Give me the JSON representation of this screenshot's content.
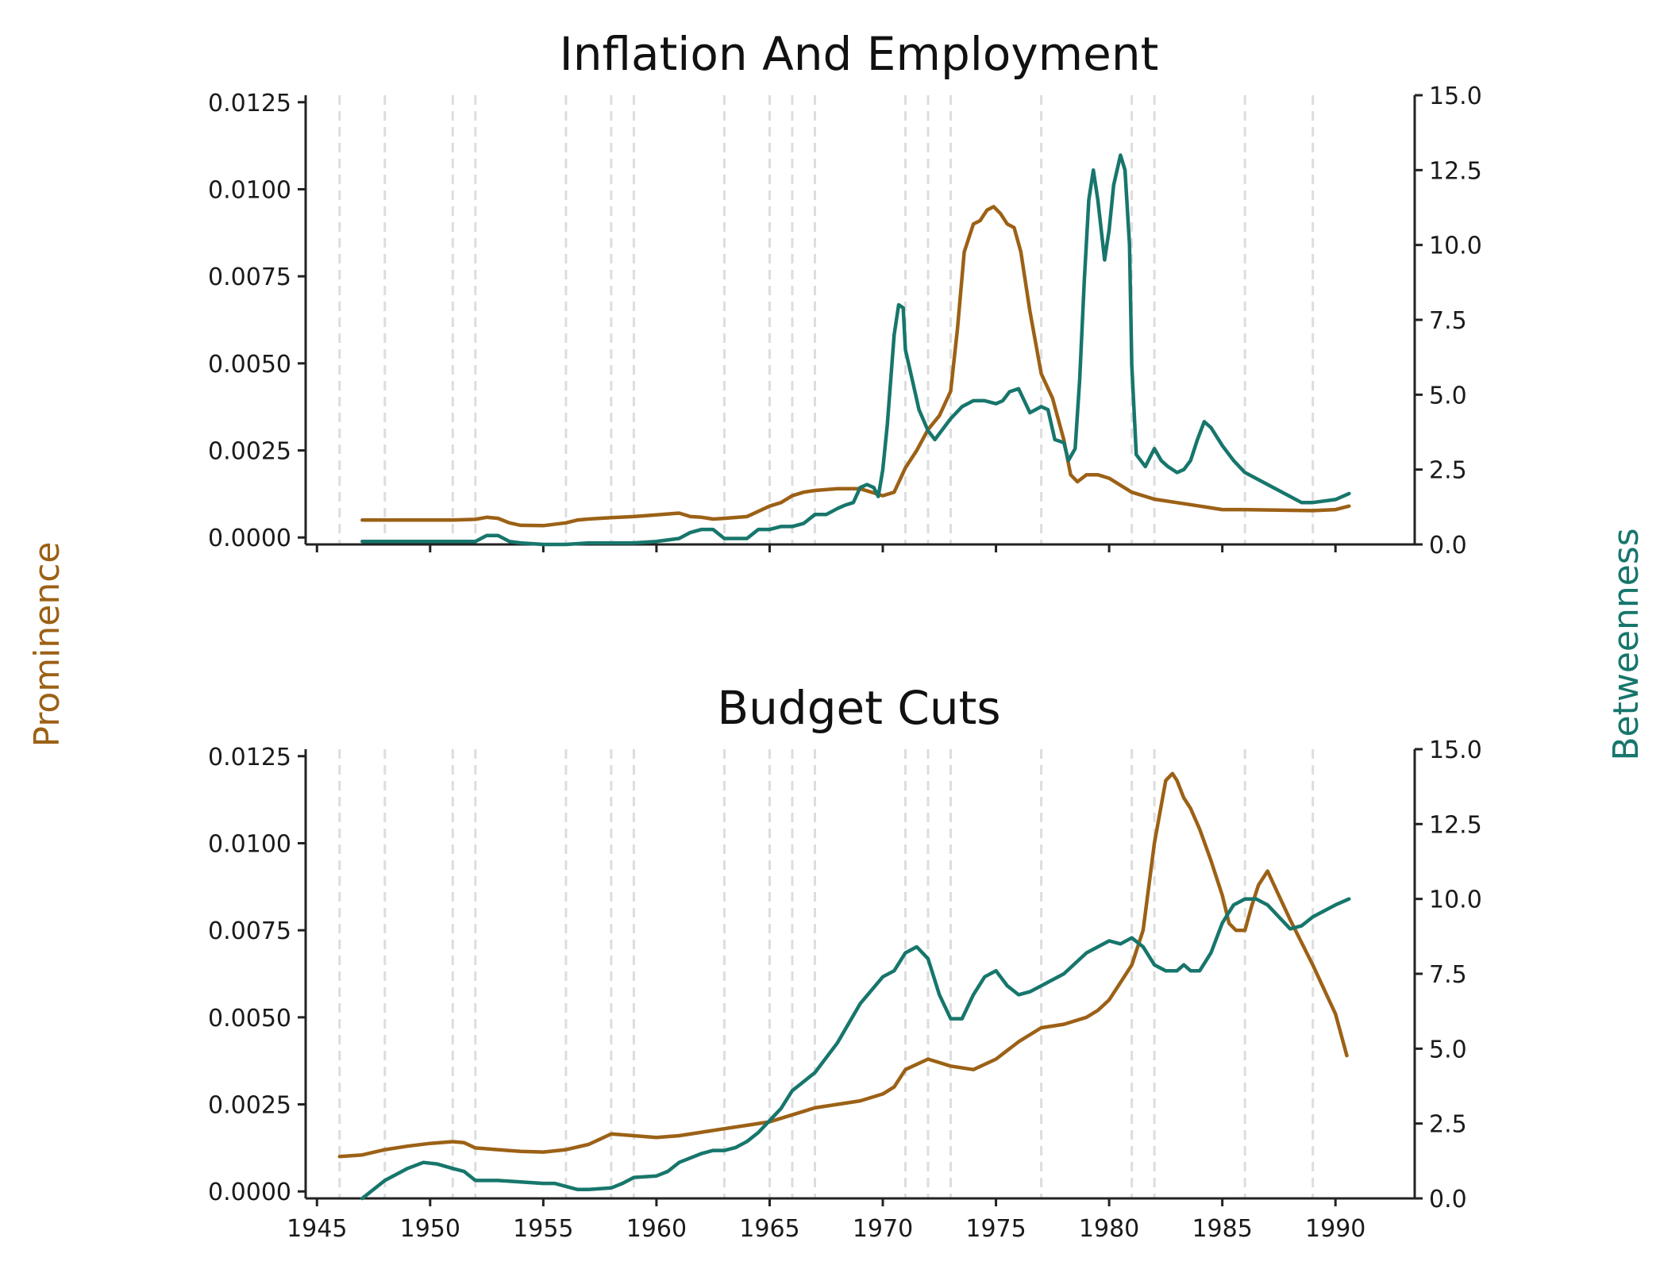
{
  "colors": {
    "prominence": "#9c6116",
    "betweenness": "#17766c",
    "axis": "#222222",
    "vline": "#dddddd"
  },
  "ylabel_left": "Prominence",
  "ylabel_right": "Betweenness",
  "chart_data": [
    {
      "type": "line",
      "title": "Inflation And Employment",
      "xlim": [
        1944.5,
        1993.5
      ],
      "x_ticks": [
        1945,
        1950,
        1955,
        1960,
        1965,
        1970,
        1975,
        1980,
        1985,
        1990
      ],
      "x_tick_labels_shown": false,
      "ylim_left": [
        -0.0002,
        0.0127
      ],
      "yticks_left": [
        "0.0000",
        "0.0025",
        "0.0050",
        "0.0075",
        "0.0100",
        "0.0125"
      ],
      "ylim_right": [
        0,
        15
      ],
      "yticks_right": [
        "0.0",
        "2.5",
        "5.0",
        "7.5",
        "10.0",
        "12.5",
        "15.0"
      ],
      "event_lines": [
        1946,
        1948,
        1951,
        1952,
        1956,
        1958,
        1959,
        1963,
        1965,
        1966,
        1967,
        1971,
        1972,
        1973,
        1977,
        1981,
        1982,
        1986,
        1989
      ],
      "grid": false,
      "legend": "none",
      "series": [
        {
          "role": "prominence",
          "axis": "left",
          "x": [
            1947,
            1949,
            1951,
            1952,
            1952.5,
            1953,
            1953.5,
            1954,
            1955,
            1956,
            1956.5,
            1957,
            1958,
            1959,
            1960,
            1961,
            1961.5,
            1962,
            1962.5,
            1963,
            1964,
            1965,
            1965.5,
            1966,
            1966.5,
            1967,
            1968,
            1969,
            1970,
            1970.5,
            1971,
            1971.5,
            1972,
            1972.5,
            1973,
            1973.3,
            1973.6,
            1974,
            1974.3,
            1974.6,
            1974.9,
            1975.2,
            1975.5,
            1975.8,
            1976.1,
            1976.5,
            1977,
            1977.5,
            1978,
            1978.3,
            1978.6,
            1979,
            1979.5,
            1980,
            1980.5,
            1981,
            1982,
            1983,
            1984,
            1985,
            1986,
            1988,
            1989,
            1990,
            1990.6
          ],
          "y": [
            0.0005,
            0.0005,
            0.0005,
            0.00052,
            0.00058,
            0.00055,
            0.00042,
            0.00035,
            0.00034,
            0.00042,
            0.0005,
            0.00053,
            0.00057,
            0.0006,
            0.00065,
            0.0007,
            0.0006,
            0.00058,
            0.00053,
            0.00055,
            0.0006,
            0.0009,
            0.001,
            0.0012,
            0.0013,
            0.00135,
            0.0014,
            0.0014,
            0.0012,
            0.0013,
            0.002,
            0.0025,
            0.0031,
            0.0035,
            0.0042,
            0.006,
            0.0082,
            0.009,
            0.0091,
            0.0094,
            0.0095,
            0.0093,
            0.009,
            0.0089,
            0.0082,
            0.0065,
            0.0047,
            0.004,
            0.0028,
            0.0018,
            0.0016,
            0.0018,
            0.0018,
            0.0017,
            0.0015,
            0.0013,
            0.0011,
            0.001,
            0.0009,
            0.0008,
            0.0008,
            0.00078,
            0.00077,
            0.0008,
            0.0009
          ]
        },
        {
          "role": "betweenness",
          "axis": "right",
          "x": [
            1947,
            1950,
            1952,
            1952.5,
            1953,
            1953.5,
            1954,
            1955,
            1956,
            1957,
            1958,
            1959,
            1960,
            1961,
            1961.5,
            1962,
            1962.5,
            1963,
            1963.5,
            1964,
            1964.5,
            1965,
            1965.5,
            1966,
            1966.5,
            1967,
            1967.5,
            1968,
            1968.3,
            1968.7,
            1969,
            1969.3,
            1969.6,
            1969.8,
            1970,
            1970.2,
            1970.5,
            1970.7,
            1970.9,
            1971,
            1971.3,
            1971.6,
            1972,
            1972.3,
            1972.6,
            1973,
            1973.5,
            1974,
            1974.5,
            1975,
            1975.3,
            1975.6,
            1976,
            1976.5,
            1977,
            1977.3,
            1977.6,
            1978,
            1978.2,
            1978.5,
            1978.7,
            1978.9,
            1979.1,
            1979.3,
            1979.5,
            1979.8,
            1980,
            1980.2,
            1980.5,
            1980.7,
            1980.9,
            1981,
            1981.2,
            1981.6,
            1982,
            1982.3,
            1982.6,
            1983,
            1983.3,
            1983.6,
            1983.9,
            1984.2,
            1984.5,
            1985,
            1985.5,
            1986,
            1987,
            1988,
            1988.5,
            1989,
            1990,
            1990.6
          ],
          "y": [
            0.1,
            0.1,
            0.1,
            0.3,
            0.3,
            0.1,
            0.05,
            0.0,
            0.0,
            0.05,
            0.05,
            0.05,
            0.1,
            0.2,
            0.4,
            0.5,
            0.5,
            0.2,
            0.2,
            0.2,
            0.5,
            0.5,
            0.6,
            0.6,
            0.7,
            1.0,
            1.0,
            1.2,
            1.3,
            1.4,
            1.9,
            2.0,
            1.9,
            1.6,
            2.5,
            4.0,
            7.0,
            8.0,
            7.9,
            6.5,
            5.5,
            4.5,
            3.8,
            3.5,
            3.8,
            4.2,
            4.6,
            4.8,
            4.8,
            4.7,
            4.8,
            5.1,
            5.2,
            4.4,
            4.6,
            4.5,
            3.5,
            3.4,
            2.8,
            3.2,
            5.5,
            8.8,
            11.5,
            12.5,
            11.5,
            9.5,
            10.5,
            12.0,
            13.0,
            12.5,
            10.0,
            6.0,
            3.0,
            2.6,
            3.2,
            2.8,
            2.6,
            2.4,
            2.5,
            2.8,
            3.5,
            4.1,
            3.9,
            3.3,
            2.8,
            2.4,
            2.0,
            1.6,
            1.4,
            1.4,
            1.5,
            1.7
          ]
        }
      ]
    },
    {
      "type": "line",
      "title": "Budget Cuts",
      "xlim": [
        1944.5,
        1993.5
      ],
      "x_ticks": [
        1945,
        1950,
        1955,
        1960,
        1965,
        1970,
        1975,
        1980,
        1985,
        1990
      ],
      "x_tick_labels": [
        "1945",
        "1950",
        "1955",
        "1960",
        "1965",
        "1970",
        "1975",
        "1980",
        "1985",
        "1990"
      ],
      "ylim_left": [
        -0.0002,
        0.0127
      ],
      "yticks_left": [
        "0.0000",
        "0.0025",
        "0.0050",
        "0.0075",
        "0.0100",
        "0.0125"
      ],
      "ylim_right": [
        0,
        15
      ],
      "yticks_right": [
        "0.0",
        "2.5",
        "5.0",
        "7.5",
        "10.0",
        "12.5",
        "15.0"
      ],
      "event_lines": [
        1946,
        1948,
        1951,
        1952,
        1956,
        1958,
        1959,
        1963,
        1965,
        1966,
        1967,
        1971,
        1972,
        1973,
        1977,
        1981,
        1982,
        1986,
        1989
      ],
      "grid": false,
      "legend": "none",
      "series": [
        {
          "role": "prominence",
          "axis": "left",
          "x": [
            1946,
            1947,
            1948,
            1949,
            1950,
            1951,
            1951.5,
            1952,
            1953,
            1954,
            1955,
            1956,
            1957,
            1957.5,
            1958,
            1959,
            1960,
            1961,
            1962,
            1963,
            1964,
            1965,
            1966,
            1967,
            1968,
            1969,
            1970,
            1970.5,
            1971,
            1972,
            1972.5,
            1973,
            1974,
            1975,
            1976,
            1977,
            1978,
            1979,
            1979.5,
            1980,
            1980.5,
            1981,
            1981.5,
            1982,
            1982.5,
            1982.8,
            1983,
            1983.3,
            1983.6,
            1984,
            1984.5,
            1985,
            1985.3,
            1985.6,
            1986,
            1986.3,
            1986.6,
            1987,
            1987.5,
            1988,
            1989,
            1990,
            1990.5
          ],
          "y": [
            0.001,
            0.00105,
            0.0012,
            0.0013,
            0.00138,
            0.00143,
            0.0014,
            0.00125,
            0.0012,
            0.00115,
            0.00113,
            0.0012,
            0.00135,
            0.0015,
            0.00165,
            0.0016,
            0.00155,
            0.0016,
            0.0017,
            0.0018,
            0.0019,
            0.002,
            0.0022,
            0.0024,
            0.0025,
            0.0026,
            0.0028,
            0.003,
            0.0035,
            0.0038,
            0.0037,
            0.0036,
            0.0035,
            0.0038,
            0.0043,
            0.0047,
            0.0048,
            0.005,
            0.0052,
            0.0055,
            0.006,
            0.0065,
            0.0075,
            0.01,
            0.0118,
            0.012,
            0.0118,
            0.0113,
            0.011,
            0.0104,
            0.0095,
            0.0085,
            0.0077,
            0.0075,
            0.0075,
            0.0082,
            0.0088,
            0.0092,
            0.0085,
            0.0078,
            0.0065,
            0.0051,
            0.0039
          ]
        },
        {
          "role": "betweenness",
          "axis": "right",
          "x": [
            1947,
            1948,
            1949,
            1949.7,
            1950.3,
            1951,
            1951.5,
            1952,
            1953,
            1954,
            1955,
            1955.5,
            1956,
            1956.5,
            1957,
            1958,
            1958.5,
            1959,
            1960,
            1960.5,
            1961,
            1962,
            1962.5,
            1963,
            1963.5,
            1964,
            1964.5,
            1965,
            1965.5,
            1966,
            1967,
            1968,
            1969,
            1970,
            1970.5,
            1971,
            1971.5,
            1972,
            1972.5,
            1973,
            1973.5,
            1974,
            1974.5,
            1975,
            1975.5,
            1976,
            1976.5,
            1977,
            1978,
            1979,
            1980,
            1980.5,
            1981,
            1981.5,
            1982,
            1982.5,
            1983,
            1983.3,
            1983.6,
            1984,
            1984.5,
            1985,
            1985.5,
            1986,
            1986.5,
            1987,
            1987.5,
            1988,
            1988.5,
            1989,
            1990,
            1990.6
          ],
          "y": [
            0.0,
            0.6,
            1.0,
            1.2,
            1.15,
            1.0,
            0.9,
            0.6,
            0.6,
            0.55,
            0.5,
            0.5,
            0.4,
            0.3,
            0.3,
            0.35,
            0.5,
            0.7,
            0.75,
            0.9,
            1.2,
            1.5,
            1.6,
            1.6,
            1.7,
            1.9,
            2.2,
            2.6,
            3.0,
            3.6,
            4.2,
            5.2,
            6.5,
            7.4,
            7.6,
            8.2,
            8.4,
            8.0,
            6.8,
            6.0,
            6.0,
            6.8,
            7.4,
            7.6,
            7.1,
            6.8,
            6.9,
            7.1,
            7.5,
            8.2,
            8.6,
            8.5,
            8.7,
            8.4,
            7.8,
            7.6,
            7.6,
            7.8,
            7.6,
            7.6,
            8.2,
            9.2,
            9.8,
            10.0,
            10.0,
            9.8,
            9.4,
            9.0,
            9.1,
            9.4,
            9.8,
            10.0
          ]
        }
      ]
    }
  ]
}
